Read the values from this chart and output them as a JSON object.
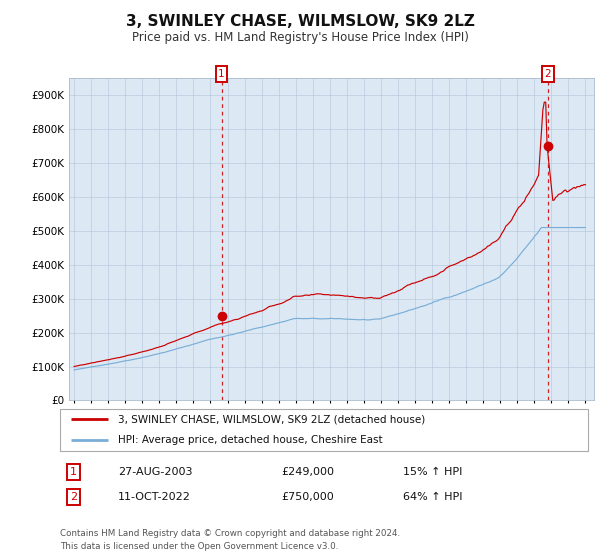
{
  "title": "3, SWINLEY CHASE, WILMSLOW, SK9 2LZ",
  "subtitle": "Price paid vs. HM Land Registry's House Price Index (HPI)",
  "title_fontsize": 11,
  "subtitle_fontsize": 8.5,
  "plot_bg_color": "#dce9f5",
  "red_line_color": "#cc0000",
  "blue_line_color": "#7aaed6",
  "dashed_line_color": "#cc0000",
  "ylim": [
    0,
    950000
  ],
  "yticks": [
    0,
    100000,
    200000,
    300000,
    400000,
    500000,
    600000,
    700000,
    800000,
    900000
  ],
  "ytick_labels": [
    "£0",
    "£100K",
    "£200K",
    "£300K",
    "£400K",
    "£500K",
    "£600K",
    "£700K",
    "£800K",
    "£900K"
  ],
  "purchase1_year": 2003.65,
  "purchase1_price": 249000,
  "purchase2_year": 2022.78,
  "purchase2_price": 750000,
  "legend_line1": "3, SWINLEY CHASE, WILMSLOW, SK9 2LZ (detached house)",
  "legend_line2": "HPI: Average price, detached house, Cheshire East",
  "table_row1_num": "1",
  "table_row1_date": "27-AUG-2003",
  "table_row1_price": "£249,000",
  "table_row1_hpi": "15% ↑ HPI",
  "table_row2_num": "2",
  "table_row2_date": "11-OCT-2022",
  "table_row2_price": "£750,000",
  "table_row2_hpi": "64% ↑ HPI",
  "footer": "Contains HM Land Registry data © Crown copyright and database right 2024.\nThis data is licensed under the Open Government Licence v3.0."
}
